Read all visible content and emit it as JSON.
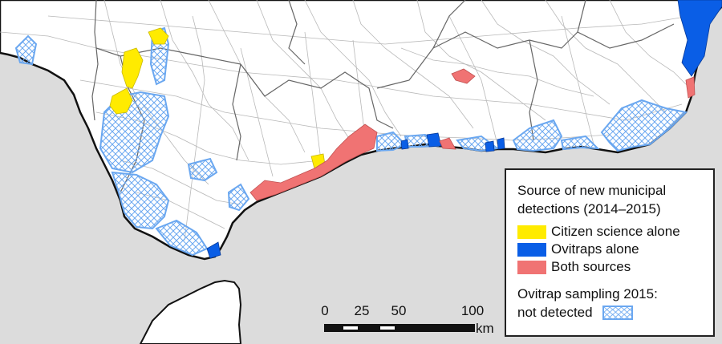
{
  "legend": {
    "title_line1": "Source of new municipal",
    "title_line2": "detections (2014–2015)",
    "items": [
      {
        "label": "Citizen science alone",
        "color": "#ffeb00"
      },
      {
        "label": "Ovitraps alone",
        "color": "#0a5ee6"
      },
      {
        "label": "Both sources",
        "color": "#f07373"
      }
    ],
    "sampling_line1": "Ovitrap sampling 2015:",
    "sampling_line2": "not detected",
    "hatch_color": "#6aa7f0"
  },
  "scalebar": {
    "labels": [
      "0",
      "25",
      "50",
      "100"
    ],
    "unit": "km"
  },
  "colors": {
    "sea": "#dcdcdc",
    "land": "#ffffff",
    "borders": "#b8b8b8",
    "province_borders": "#666666",
    "coast": "#111111"
  }
}
